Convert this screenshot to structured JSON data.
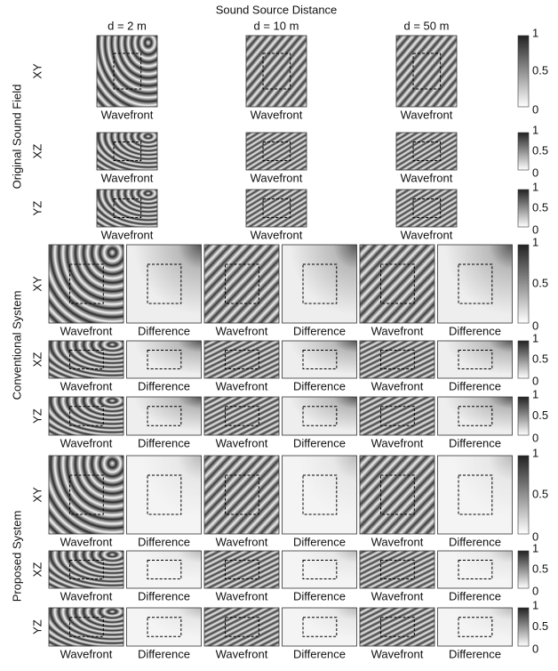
{
  "header": {
    "title": "Sound Source Distance",
    "columns": [
      "d = 2 m",
      "d = 10 m",
      "d = 50 m"
    ]
  },
  "groups": [
    {
      "label": "Original Sound Field",
      "rows": [
        {
          "plane": "XY",
          "captions": [
            "Wavefront",
            "Wavefront",
            "Wavefront"
          ],
          "colorbar": [
            1,
            0.5,
            0
          ]
        },
        {
          "plane": "XZ",
          "captions": [
            "Wavefront",
            "Wavefront",
            "Wavefront"
          ],
          "colorbar": [
            1,
            0.5,
            0
          ]
        },
        {
          "plane": "YZ",
          "captions": [
            "Wavefront",
            "Wavefront",
            "Wavefront"
          ],
          "colorbar": [
            1,
            0.5,
            0
          ]
        }
      ]
    },
    {
      "label": "Conventional System",
      "rows": [
        {
          "plane": "XY",
          "captions": [
            "Wavefront",
            "Difference",
            "Wavefront",
            "Difference",
            "Wavefront",
            "Difference"
          ],
          "colorbar": [
            1,
            0.5,
            0
          ]
        },
        {
          "plane": "XZ",
          "captions": [
            "Wavefront",
            "Difference",
            "Wavefront",
            "Difference",
            "Wavefront",
            "Difference"
          ],
          "colorbar": [
            1,
            0.5,
            0
          ]
        },
        {
          "plane": "YZ",
          "captions": [
            "Wavefront",
            "Difference",
            "Wavefront",
            "Difference",
            "Wavefront",
            "Difference"
          ],
          "colorbar": [
            1,
            0.5,
            0
          ]
        }
      ]
    },
    {
      "label": "Proposed System",
      "rows": [
        {
          "plane": "XY",
          "captions": [
            "Wavefront",
            "Difference",
            "Wavefront",
            "Difference",
            "Wavefront",
            "Difference"
          ],
          "colorbar": [
            1,
            0.5,
            0
          ]
        },
        {
          "plane": "XZ",
          "captions": [
            "Wavefront",
            "Difference",
            "Wavefront",
            "Difference",
            "Wavefront",
            "Difference"
          ],
          "colorbar": [
            1,
            0.5,
            0
          ]
        },
        {
          "plane": "YZ",
          "captions": [
            "Wavefront",
            "Difference",
            "Wavefront",
            "Difference",
            "Wavefront",
            "Difference"
          ],
          "colorbar": [
            1,
            0.5,
            0
          ]
        }
      ]
    }
  ]
}
